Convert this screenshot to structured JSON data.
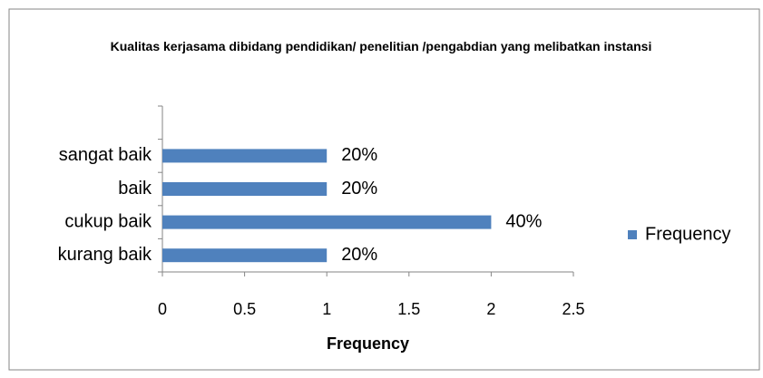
{
  "chart_data": {
    "type": "bar",
    "orientation": "horizontal",
    "title": "Kualitas kerjasama dibidang pendidikan/ penelitian /pengabdian yang melibatkan instansi",
    "categories": [
      "kurang baik",
      "cukup baik",
      "baik",
      "sangat baik",
      null
    ],
    "series": [
      {
        "name": "Frequency",
        "color": "#4f81bd",
        "values": [
          1,
          2,
          1,
          1,
          null
        ],
        "value_labels": [
          "20%",
          "40%",
          "20%",
          "20%",
          null
        ]
      }
    ],
    "xlabel": "Frequency",
    "xlim": [
      0,
      2.5
    ],
    "xticks": [
      0,
      0.5,
      1,
      1.5,
      2,
      2.5
    ],
    "legend": "right"
  }
}
